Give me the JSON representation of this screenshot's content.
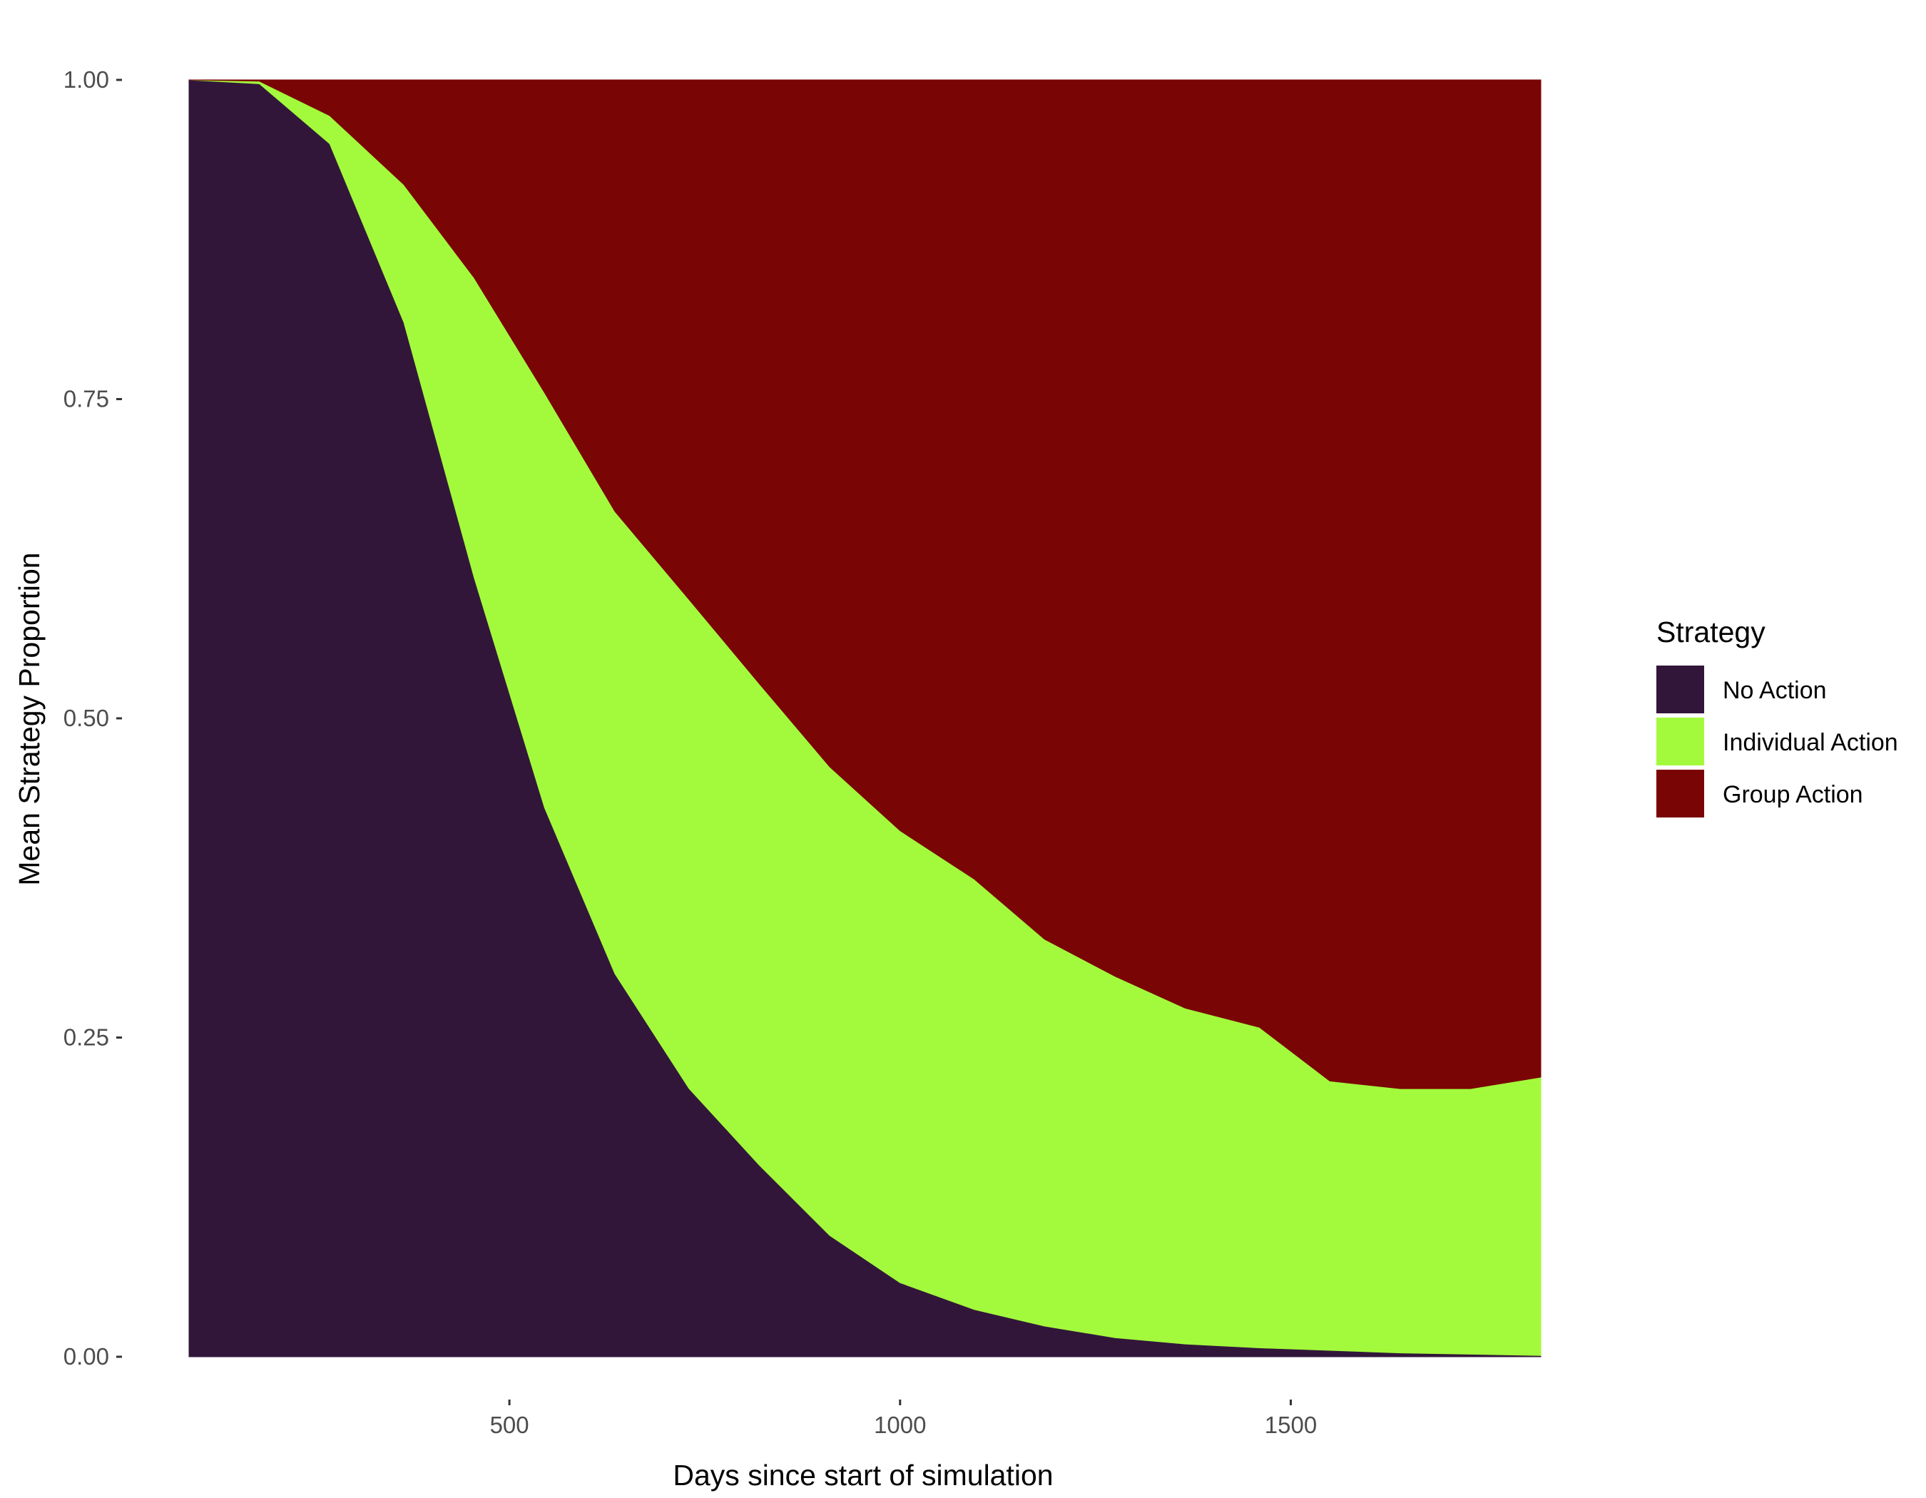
{
  "chart_data": {
    "type": "area",
    "stacked": true,
    "xlabel": "Days since start of simulation",
    "ylabel": "Mean Strategy Proportion",
    "xlim": [
      90,
      1820
    ],
    "ylim": [
      0,
      1
    ],
    "x_ticks": [
      500,
      1000,
      1500
    ],
    "x_tick_labels": [
      "500",
      "1000",
      "1500"
    ],
    "y_ticks": [
      0,
      0.25,
      0.5,
      0.75,
      1
    ],
    "y_tick_labels": [
      "0.00",
      "0.25",
      "0.50",
      "0.75",
      "1.00"
    ],
    "grid": false,
    "legend": {
      "title": "Strategy",
      "position": "right"
    },
    "x": [
      90,
      180,
      270,
      365,
      455,
      545,
      635,
      730,
      820,
      910,
      1000,
      1095,
      1185,
      1275,
      1365,
      1460,
      1550,
      1640,
      1730,
      1820
    ],
    "series": [
      {
        "name": "No Action",
        "color": "#32163a",
        "values": [
          1.0,
          0.997,
          0.95,
          0.81,
          0.61,
          0.43,
          0.3,
          0.21,
          0.15,
          0.095,
          0.058,
          0.037,
          0.024,
          0.015,
          0.01,
          0.007,
          0.005,
          0.003,
          0.002,
          0.001
        ]
      },
      {
        "name": "Individual Action",
        "color": "#a3fa3c",
        "values": [
          0.0,
          0.002,
          0.022,
          0.108,
          0.235,
          0.325,
          0.362,
          0.383,
          0.377,
          0.367,
          0.354,
          0.337,
          0.303,
          0.283,
          0.263,
          0.251,
          0.211,
          0.207,
          0.208,
          0.218
        ]
      },
      {
        "name": "Group Action",
        "color": "#7a0505",
        "values": [
          0.0,
          0.001,
          0.028,
          0.082,
          0.155,
          0.245,
          0.338,
          0.407,
          0.473,
          0.538,
          0.588,
          0.626,
          0.673,
          0.702,
          0.727,
          0.742,
          0.784,
          0.79,
          0.79,
          0.781
        ]
      }
    ]
  }
}
